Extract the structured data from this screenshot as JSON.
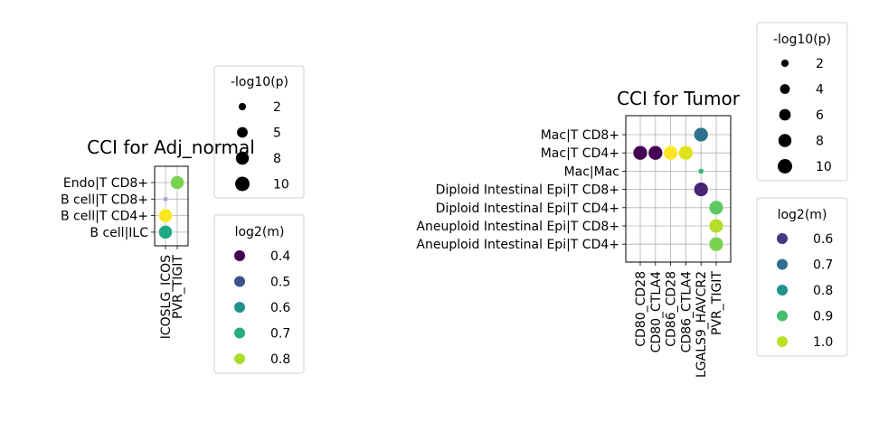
{
  "chart_data": [
    {
      "type": "scatter",
      "title": "CCI for Adj_normal",
      "xlabel": "",
      "ylabel": "",
      "x_categories": [
        "ICOSLG_ICOS",
        "PVR_TIGIT"
      ],
      "y_categories": [
        "Endo|T CD8+",
        "B cell|T CD8+",
        "B cell|T CD4+",
        "B cell|ILC"
      ],
      "grid": true,
      "points": [
        {
          "x": "PVR_TIGIT",
          "y": "Endo|T CD8+",
          "neg_log10_p": 9,
          "log2_m": 0.76,
          "color": "#7ad151"
        },
        {
          "x": "ICOSLG_ICOS",
          "y": "B cell|T CD8+",
          "neg_log10_p": 0.8,
          "log2_m": 0.5,
          "color": "#a8a8d8"
        },
        {
          "x": "ICOSLG_ICOS",
          "y": "B cell|T CD4+",
          "neg_log10_p": 9,
          "log2_m": 0.82,
          "color": "#fde725"
        },
        {
          "x": "ICOSLG_ICOS",
          "y": "B cell|ILC",
          "neg_log10_p": 9,
          "log2_m": 0.7,
          "color": "#22a884"
        }
      ],
      "size_legend": {
        "title": "-log10(p)",
        "labels": [
          "2",
          "5",
          "8",
          "10"
        ],
        "values": [
          2,
          5,
          8,
          10
        ]
      },
      "color_legend": {
        "title": "log2(m)",
        "labels": [
          "0.4",
          "0.5",
          "0.6",
          "0.7",
          "0.8"
        ],
        "colors": [
          "#440154",
          "#3b528b",
          "#21918c",
          "#27ad81",
          "#addc30"
        ]
      }
    },
    {
      "type": "scatter",
      "title": "CCI for Tumor",
      "xlabel": "",
      "ylabel": "",
      "x_categories": [
        "CD80_CD28",
        "CD80_CTLA4",
        "CD86_CD28",
        "CD86_CTLA4",
        "LGALS9_HAVCR2",
        "PVR_TIGIT"
      ],
      "y_categories": [
        "Mac|T CD8+",
        "Mac|T CD4+",
        "Mac|Mac",
        "Diploid Intestinal Epi|T CD8+",
        "Diploid Intestinal Epi|T CD4+",
        "Aneuploid Intestinal Epi|T CD8+",
        "Aneuploid Intestinal Epi|T CD4+"
      ],
      "grid": true,
      "points": [
        {
          "x": "LGALS9_HAVCR2",
          "y": "Mac|T CD8+",
          "neg_log10_p": 10,
          "log2_m": 0.7,
          "color": "#2c728e"
        },
        {
          "x": "CD80_CD28",
          "y": "Mac|T CD4+",
          "neg_log10_p": 10,
          "log2_m": 0.5,
          "color": "#440154"
        },
        {
          "x": "CD80_CTLA4",
          "y": "Mac|T CD4+",
          "neg_log10_p": 10,
          "log2_m": 0.5,
          "color": "#440154"
        },
        {
          "x": "CD86_CD28",
          "y": "Mac|T CD4+",
          "neg_log10_p": 10,
          "log2_m": 1.05,
          "color": "#fde725"
        },
        {
          "x": "CD86_CTLA4",
          "y": "Mac|T CD4+",
          "neg_log10_p": 10,
          "log2_m": 1.02,
          "color": "#dde318"
        },
        {
          "x": "LGALS9_HAVCR2",
          "y": "Mac|Mac",
          "neg_log10_p": 1,
          "log2_m": 0.85,
          "color": "#35b779"
        },
        {
          "x": "LGALS9_HAVCR2",
          "y": "Diploid Intestinal Epi|T CD8+",
          "neg_log10_p": 10,
          "log2_m": 0.55,
          "color": "#482475"
        },
        {
          "x": "PVR_TIGIT",
          "y": "Diploid Intestinal Epi|T CD4+",
          "neg_log10_p": 10,
          "log2_m": 0.92,
          "color": "#5ec962"
        },
        {
          "x": "PVR_TIGIT",
          "y": "Aneuploid Intestinal Epi|T CD8+",
          "neg_log10_p": 10,
          "log2_m": 1.0,
          "color": "#b5de2b"
        },
        {
          "x": "PVR_TIGIT",
          "y": "Aneuploid Intestinal Epi|T CD4+",
          "neg_log10_p": 10,
          "log2_m": 0.94,
          "color": "#7ad151"
        }
      ],
      "size_legend": {
        "title": "-log10(p)",
        "labels": [
          "2",
          "4",
          "6",
          "8",
          "10"
        ],
        "values": [
          2,
          4,
          6,
          8,
          10
        ]
      },
      "color_legend": {
        "title": "log2(m)",
        "labels": [
          "0.6",
          "0.7",
          "0.8",
          "0.9",
          "1.0"
        ],
        "colors": [
          "#443a83",
          "#2c6f8e",
          "#20938c",
          "#44bf70",
          "#bddf26"
        ]
      }
    }
  ]
}
